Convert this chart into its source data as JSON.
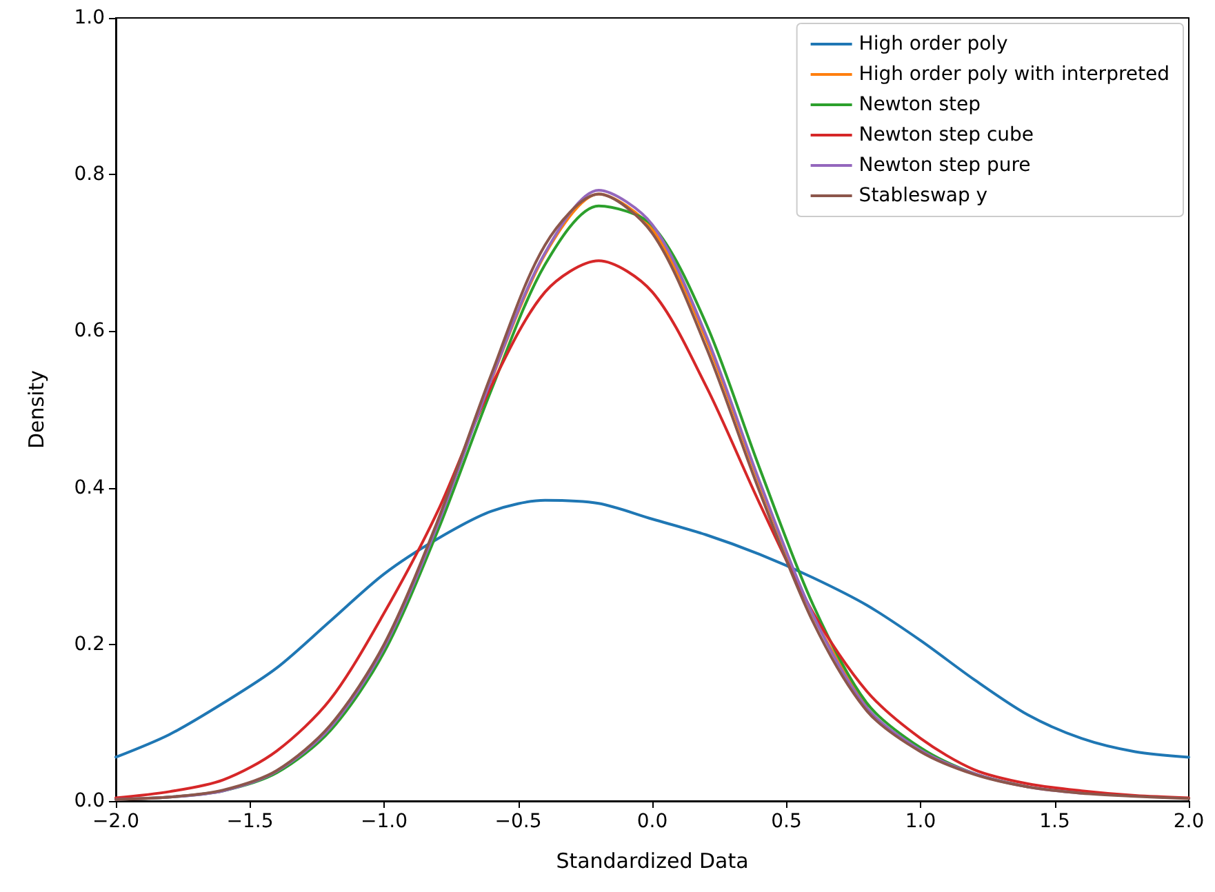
{
  "chart_data": {
    "type": "line",
    "xlabel": "Standardized Data",
    "ylabel": "Density",
    "x": [
      -2,
      -1.8,
      -1.6,
      -1.4,
      -1.2,
      -1,
      -0.8,
      -0.6,
      -0.4,
      -0.2,
      0,
      0.2,
      0.4,
      0.6,
      0.8,
      1,
      1.2,
      1.4,
      1.6,
      1.8,
      2
    ],
    "series": [
      {
        "name": "High order poly",
        "color": "#1f77b4",
        "values": [
          0.056,
          0.085,
          0.125,
          0.17,
          0.23,
          0.29,
          0.335,
          0.37,
          0.384,
          0.38,
          0.36,
          0.34,
          0.315,
          0.285,
          0.25,
          0.205,
          0.155,
          0.11,
          0.08,
          0.063,
          0.056
        ]
      },
      {
        "name": "High order poly with interpreted",
        "color": "#ff7f0e",
        "values": [
          null,
          null,
          null,
          null,
          null,
          null,
          null,
          0.537,
          0.698,
          0.775,
          0.73,
          0.59,
          0.405,
          0.236,
          0.12,
          null,
          null,
          null,
          null,
          null,
          null
        ]
      },
      {
        "name": "Newton step",
        "color": "#2ca02c",
        "values": [
          0.002,
          0.005,
          0.013,
          0.036,
          0.09,
          0.19,
          0.345,
          0.525,
          0.685,
          0.76,
          0.735,
          0.61,
          0.425,
          0.25,
          0.125,
          0.068,
          0.035,
          0.018,
          null,
          null,
          null
        ]
      },
      {
        "name": "Newton step cube",
        "color": "#d62728",
        "values": [
          0.004,
          0.012,
          0.027,
          0.064,
          0.13,
          0.24,
          0.37,
          0.53,
          0.65,
          0.69,
          0.65,
          0.53,
          0.38,
          0.24,
          0.14,
          0.08,
          0.04,
          0.022,
          0.013,
          0.007,
          0.004
        ]
      },
      {
        "name": "Newton step pure",
        "color": "#9467bd",
        "values": [
          0.002,
          0.005,
          0.013,
          0.038,
          0.094,
          0.196,
          0.353,
          0.539,
          0.7,
          0.78,
          0.736,
          0.595,
          0.408,
          0.237,
          0.119,
          0.065,
          0.035,
          0.018,
          0.01,
          null,
          null
        ]
      },
      {
        "name": "Stableswap y",
        "color": "#8c564b",
        "values": [
          0.002,
          0.005,
          0.014,
          0.039,
          0.097,
          0.2,
          0.358,
          0.545,
          0.71,
          0.775,
          0.725,
          0.58,
          0.395,
          0.228,
          0.115,
          0.063,
          0.034,
          0.018,
          0.01,
          0.006,
          0.003
        ]
      }
    ],
    "xlim": [
      -2,
      2
    ],
    "xticks": [
      {
        "value": -2,
        "label": "−2.0"
      },
      {
        "value": -1.5,
        "label": "−1.5"
      },
      {
        "value": -1,
        "label": "−1.0"
      },
      {
        "value": -0.5,
        "label": "−0.5"
      },
      {
        "value": 0,
        "label": "0.0"
      },
      {
        "value": 0.5,
        "label": "0.5"
      },
      {
        "value": 1,
        "label": "1.0"
      },
      {
        "value": 1.5,
        "label": "1.5"
      },
      {
        "value": 2,
        "label": "2.0"
      }
    ],
    "ylim": [
      0,
      1
    ],
    "yticks": [
      {
        "value": 0,
        "label": "0.0"
      },
      {
        "value": 0.2,
        "label": "0.2"
      },
      {
        "value": 0.4,
        "label": "0.4"
      },
      {
        "value": 0.6,
        "label": "0.6"
      },
      {
        "value": 0.8,
        "label": "0.8"
      },
      {
        "value": 1,
        "label": "1.0"
      }
    ],
    "grid": false,
    "legend": "top right",
    "marker": "none",
    "line_style": "solid"
  }
}
